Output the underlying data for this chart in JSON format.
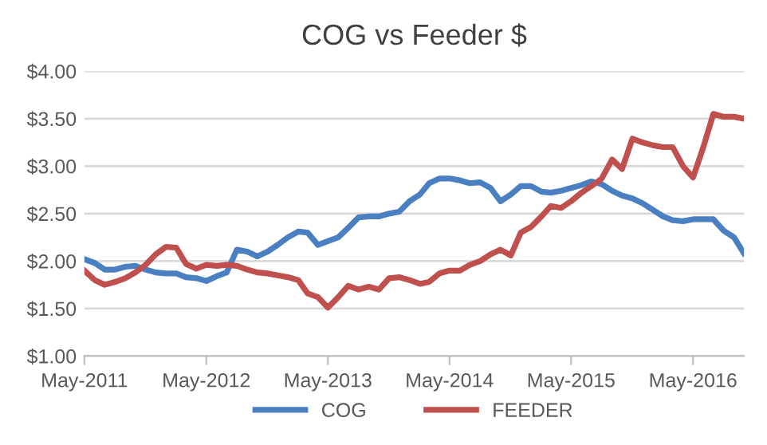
{
  "chart_data": {
    "type": "line",
    "title": "COG vs Feeder $",
    "x": [
      "2011-05",
      "2011-06",
      "2011-07",
      "2011-08",
      "2011-09",
      "2011-10",
      "2011-11",
      "2011-12",
      "2012-01",
      "2012-02",
      "2012-03",
      "2012-04",
      "2012-05",
      "2012-06",
      "2012-07",
      "2012-08",
      "2012-09",
      "2012-10",
      "2012-11",
      "2012-12",
      "2013-01",
      "2013-02",
      "2013-03",
      "2013-04",
      "2013-05",
      "2013-06",
      "2013-07",
      "2013-08",
      "2013-09",
      "2013-10",
      "2013-11",
      "2013-12",
      "2014-01",
      "2014-02",
      "2014-03",
      "2014-04",
      "2014-05",
      "2014-06",
      "2014-07",
      "2014-08",
      "2014-09",
      "2014-10",
      "2014-11",
      "2014-12",
      "2015-01",
      "2015-02",
      "2015-03",
      "2015-04",
      "2015-05",
      "2015-06",
      "2015-07",
      "2015-08",
      "2015-09",
      "2015-10",
      "2015-11",
      "2015-12",
      "2016-01",
      "2016-02",
      "2016-03",
      "2016-04",
      "2016-05",
      "2016-06",
      "2016-07",
      "2016-08",
      "2016-09",
      "2016-10"
    ],
    "series": [
      {
        "name": "COG",
        "color": "#4a7fc1",
        "values": [
          2.02,
          1.98,
          1.91,
          1.91,
          1.94,
          1.95,
          1.91,
          1.88,
          1.87,
          1.87,
          1.83,
          1.82,
          1.79,
          1.84,
          1.88,
          2.12,
          2.1,
          2.05,
          2.1,
          2.17,
          2.25,
          2.31,
          2.3,
          2.17,
          2.21,
          2.25,
          2.35,
          2.46,
          2.47,
          2.47,
          2.5,
          2.52,
          2.63,
          2.7,
          2.82,
          2.87,
          2.87,
          2.85,
          2.82,
          2.83,
          2.77,
          2.63,
          2.7,
          2.79,
          2.79,
          2.73,
          2.72,
          2.74,
          2.77,
          2.8,
          2.84,
          2.81,
          2.74,
          2.69,
          2.66,
          2.61,
          2.54,
          2.47,
          2.43,
          2.42,
          2.44,
          2.44,
          2.44,
          2.32,
          2.25,
          2.08
        ]
      },
      {
        "name": "FEEDER",
        "color": "#c0504d",
        "values": [
          1.9,
          1.8,
          1.75,
          1.78,
          1.82,
          1.88,
          1.96,
          2.07,
          2.15,
          2.14,
          1.97,
          1.92,
          1.96,
          1.95,
          1.96,
          1.95,
          1.91,
          1.88,
          1.87,
          1.85,
          1.83,
          1.8,
          1.66,
          1.62,
          1.51,
          1.62,
          1.74,
          1.7,
          1.73,
          1.7,
          1.82,
          1.83,
          1.8,
          1.76,
          1.78,
          1.87,
          1.9,
          1.9,
          1.96,
          2.0,
          2.07,
          2.12,
          2.06,
          2.3,
          2.36,
          2.47,
          2.58,
          2.56,
          2.63,
          2.72,
          2.79,
          2.87,
          3.07,
          2.97,
          3.29,
          3.25,
          3.22,
          3.2,
          3.2,
          3.0,
          2.88,
          3.2,
          3.55,
          3.52,
          3.52,
          3.5
        ]
      }
    ],
    "xlim": [
      "2011-05",
      "2016-10"
    ],
    "xticks": [
      {
        "value": "2011-05",
        "label": "May-2011"
      },
      {
        "value": "2012-05",
        "label": "May-2012"
      },
      {
        "value": "2013-05",
        "label": "May-2013"
      },
      {
        "value": "2014-05",
        "label": "May-2014"
      },
      {
        "value": "2015-05",
        "label": "May-2015"
      },
      {
        "value": "2016-05",
        "label": "May-2016"
      }
    ],
    "ylim": [
      1.0,
      4.0
    ],
    "yticks": [
      {
        "value": 1.0,
        "label": "$1.00"
      },
      {
        "value": 1.5,
        "label": "$1.50"
      },
      {
        "value": 2.0,
        "label": "$2.00"
      },
      {
        "value": 2.5,
        "label": "$2.50"
      },
      {
        "value": 3.0,
        "label": "$3.00"
      },
      {
        "value": 3.5,
        "label": "$3.50"
      },
      {
        "value": 4.0,
        "label": "$4.00"
      }
    ],
    "grid": "y",
    "legend": "bottom",
    "marker": "none",
    "line_style": "solid"
  }
}
